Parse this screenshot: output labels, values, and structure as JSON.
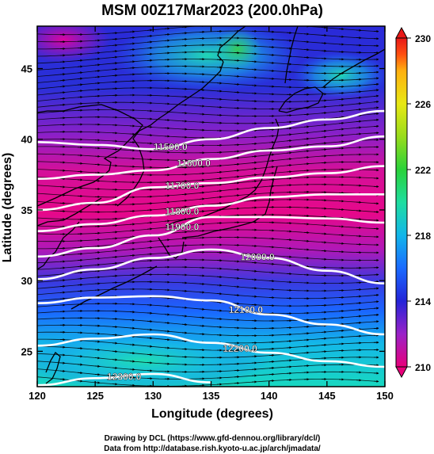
{
  "title": "MSM 00Z17Mar2023 (200.0hPa)",
  "xlabel": "Longitude (degrees)",
  "ylabel": "Latitude  (degrees)",
  "footer": {
    "line1": "Drawing by DCL (https://www.gfd-dennou.org/library/dcl/)",
    "line2": "Data from http://database.rish.kyoto-u.ac.jp/arch/jmadata/"
  },
  "chart_data": {
    "type": "heatmap",
    "variable_colorbar_range": [
      210,
      230
    ],
    "xlim": [
      120,
      150
    ],
    "ylim": [
      22.5,
      48
    ],
    "xticks": [
      {
        "value": 120,
        "label": "120"
      },
      {
        "value": 125,
        "label": "125"
      },
      {
        "value": 130,
        "label": "130"
      },
      {
        "value": 135,
        "label": "135"
      },
      {
        "value": 140,
        "label": "140"
      },
      {
        "value": 145,
        "label": "145"
      },
      {
        "value": 150,
        "label": "150"
      }
    ],
    "yticks": [
      {
        "value": 25,
        "label": "25"
      },
      {
        "value": 30,
        "label": "30"
      },
      {
        "value": 35,
        "label": "35"
      },
      {
        "value": 40,
        "label": "40"
      },
      {
        "value": 45,
        "label": "45"
      }
    ],
    "colorbar_ticks": [
      {
        "value": 210,
        "label": "210"
      },
      {
        "value": 214,
        "label": "214"
      },
      {
        "value": 218,
        "label": "218"
      },
      {
        "value": 222,
        "label": "222"
      },
      {
        "value": 226,
        "label": "226"
      },
      {
        "value": 230,
        "label": "230"
      }
    ],
    "colorbar_colors": [
      "#e8007a",
      "#9a22c8",
      "#2424d8",
      "#1a6aff",
      "#12b6ea",
      "#1fdda0",
      "#2ad23a",
      "#98dc1c",
      "#e8e814",
      "#ffb010",
      "#ff5010",
      "#e81818"
    ],
    "contours": [
      {
        "label": "11500.0",
        "label_lon": 131.5,
        "points": [
          [
            120,
            39.8
          ],
          [
            125,
            39.6
          ],
          [
            130,
            39.3
          ],
          [
            135,
            40.0
          ],
          [
            140,
            40.8
          ],
          [
            145,
            41.4
          ],
          [
            150,
            42.0
          ]
        ]
      },
      {
        "label": "11600.0",
        "label_lon": 133.5,
        "points": [
          [
            120,
            37.2
          ],
          [
            125,
            37.5
          ],
          [
            130,
            37.8
          ],
          [
            135,
            38.6
          ],
          [
            140,
            39.2
          ],
          [
            145,
            39.5
          ],
          [
            150,
            40.2
          ]
        ]
      },
      {
        "label": "11700.0",
        "label_lon": 132.5,
        "points": [
          [
            120,
            35.0
          ],
          [
            125,
            35.5
          ],
          [
            130,
            36.6
          ],
          [
            135,
            36.9
          ],
          [
            140,
            37.3
          ],
          [
            145,
            37.6
          ],
          [
            150,
            38.1
          ]
        ]
      },
      {
        "label": "11800.0",
        "label_lon": 132.5,
        "points": [
          [
            120,
            33.5
          ],
          [
            125,
            34.0
          ],
          [
            130,
            34.6
          ],
          [
            135,
            35.3
          ],
          [
            140,
            35.9
          ],
          [
            145,
            36.1
          ],
          [
            150,
            36.1
          ]
        ]
      },
      {
        "label": "11900.0",
        "label_lon": 132.5,
        "points": [
          [
            120,
            31.7
          ],
          [
            125,
            32.3
          ],
          [
            130,
            33.2
          ],
          [
            135,
            34.5
          ],
          [
            140,
            34.5
          ],
          [
            145,
            34.4
          ],
          [
            150,
            34.1
          ]
        ]
      },
      {
        "label": "12000.0",
        "label_lon": 139.0,
        "points": [
          [
            120,
            30.1
          ],
          [
            125,
            30.8
          ],
          [
            130,
            31.6
          ],
          [
            135,
            32.2
          ],
          [
            140,
            31.6
          ],
          [
            145,
            30.7
          ],
          [
            150,
            29.8
          ]
        ]
      },
      {
        "label": "12100.0",
        "label_lon": 138.0,
        "points": [
          [
            120,
            28.4
          ],
          [
            125,
            28.8
          ],
          [
            130,
            28.9
          ],
          [
            135,
            28.6
          ],
          [
            140,
            27.6
          ],
          [
            145,
            26.9
          ],
          [
            150,
            26.2
          ]
        ]
      },
      {
        "label": "12200.0",
        "label_lon": 137.5,
        "points": [
          [
            120,
            25.4
          ],
          [
            125,
            25.9
          ],
          [
            130,
            26.2
          ],
          [
            135,
            25.6
          ],
          [
            140,
            24.9
          ],
          [
            145,
            24.3
          ],
          [
            150,
            23.9
          ]
        ]
      },
      {
        "label": "12300.0",
        "label_lon": 127.5,
        "points": [
          [
            120,
            22.6
          ],
          [
            125,
            23.1
          ],
          [
            130,
            23.4
          ],
          [
            135,
            22.8
          ]
        ]
      }
    ]
  }
}
